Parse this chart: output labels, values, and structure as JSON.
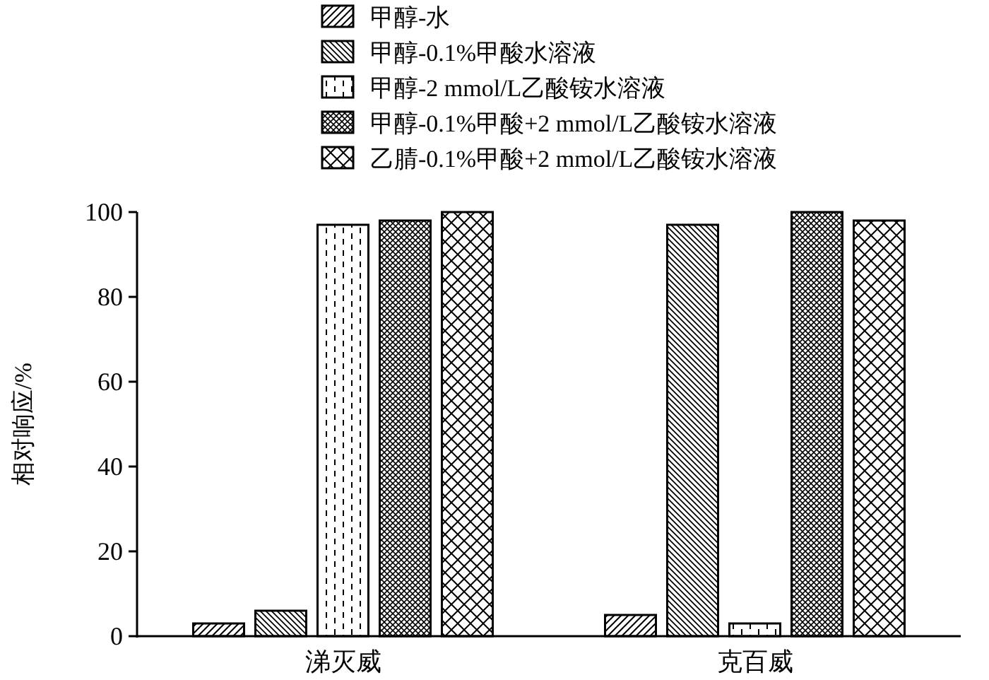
{
  "chart_data": {
    "type": "bar",
    "ylabel": "相对响应/%",
    "categories": [
      "涕灭威",
      "克百威"
    ],
    "series": [
      {
        "name": "甲醇-水",
        "values": [
          3,
          5
        ]
      },
      {
        "name": "甲醇-0.1%甲酸水溶液",
        "values": [
          6,
          97
        ]
      },
      {
        "name": "甲醇-2 mmol/L乙酸铵水溶液",
        "values": [
          97,
          3
        ]
      },
      {
        "name": "甲醇-0.1%甲酸+2 mmol/L乙酸铵水溶液",
        "values": [
          98,
          100
        ]
      },
      {
        "name": "乙腈-0.1%甲酸+2 mmol/L乙酸铵水溶液",
        "values": [
          100,
          98
        ]
      }
    ],
    "ylim": [
      0,
      100
    ],
    "yticks": [
      0,
      20,
      40,
      60,
      80,
      100
    ],
    "legend": "top",
    "grid": false
  }
}
